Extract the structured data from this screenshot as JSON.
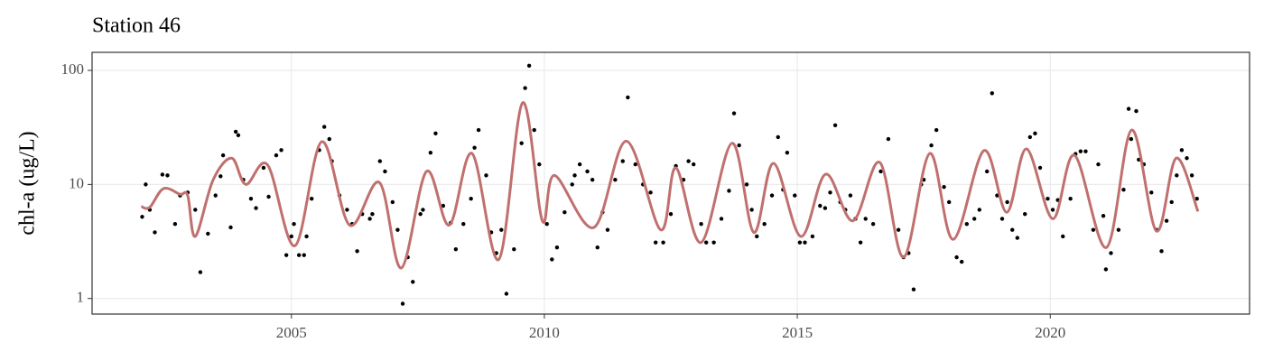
{
  "chart_data": {
    "type": "scatter",
    "title": "Station 46",
    "y_label": "chl-a (ug/L)",
    "log_y": true,
    "grid": true,
    "xlim": [
      2001.06,
      2023.94
    ],
    "ylim": [
      0.73,
      144
    ],
    "xticks": [
      2005,
      2010,
      2015,
      2020
    ],
    "yticks": [
      1,
      10,
      100
    ],
    "points": {
      "color": "#000000",
      "x": [
        2002.05,
        2002.12,
        2002.2,
        2002.3,
        2002.45,
        2002.55,
        2002.7,
        2002.8,
        2002.95,
        2003.1,
        2003.2,
        2003.35,
        2003.5,
        2003.6,
        2003.65,
        2003.8,
        2003.9,
        2003.95,
        2004.05,
        2004.2,
        2004.3,
        2004.45,
        2004.55,
        2004.7,
        2004.8,
        2004.9,
        2005.0,
        2005.05,
        2005.15,
        2005.25,
        2005.3,
        2005.4,
        2005.55,
        2005.65,
        2005.75,
        2005.8,
        2005.95,
        2006.1,
        2006.2,
        2006.3,
        2006.4,
        2006.55,
        2006.6,
        2006.75,
        2006.85,
        2007.0,
        2007.1,
        2007.2,
        2007.3,
        2007.4,
        2007.55,
        2007.6,
        2007.75,
        2007.85,
        2008.0,
        2008.15,
        2008.25,
        2008.4,
        2008.55,
        2008.62,
        2008.7,
        2008.85,
        2008.95,
        2009.05,
        2009.15,
        2009.25,
        2009.4,
        2009.55,
        2009.62,
        2009.7,
        2009.8,
        2009.9,
        2010.05,
        2010.15,
        2010.25,
        2010.4,
        2010.55,
        2010.6,
        2010.7,
        2010.85,
        2010.95,
        2011.05,
        2011.15,
        2011.25,
        2011.4,
        2011.55,
        2011.65,
        2011.8,
        2011.95,
        2012.1,
        2012.2,
        2012.35,
        2012.5,
        2012.6,
        2012.75,
        2012.85,
        2012.95,
        2013.1,
        2013.2,
        2013.35,
        2013.5,
        2013.65,
        2013.75,
        2013.85,
        2014.0,
        2014.1,
        2014.2,
        2014.35,
        2014.5,
        2014.62,
        2014.72,
        2014.8,
        2014.95,
        2015.05,
        2015.15,
        2015.3,
        2015.45,
        2015.55,
        2015.65,
        2015.75,
        2015.85,
        2015.95,
        2016.05,
        2016.15,
        2016.25,
        2016.35,
        2016.5,
        2016.65,
        2016.8,
        2017.0,
        2017.1,
        2017.2,
        2017.3,
        2017.45,
        2017.5,
        2017.65,
        2017.75,
        2017.9,
        2018.0,
        2018.15,
        2018.25,
        2018.35,
        2018.5,
        2018.6,
        2018.75,
        2018.85,
        2018.95,
        2019.05,
        2019.15,
        2019.25,
        2019.35,
        2019.5,
        2019.6,
        2019.7,
        2019.8,
        2019.95,
        2020.05,
        2020.15,
        2020.25,
        2020.4,
        2020.5,
        2020.6,
        2020.7,
        2020.85,
        2020.95,
        2021.05,
        2021.1,
        2021.2,
        2021.35,
        2021.45,
        2021.55,
        2021.6,
        2021.7,
        2021.75,
        2021.85,
        2022.0,
        2022.1,
        2022.2,
        2022.3,
        2022.4,
        2022.5,
        2022.6,
        2022.7,
        2022.8,
        2022.9
      ],
      "values": [
        5.2,
        10,
        6,
        3.8,
        12.2,
        12,
        4.5,
        8,
        8.5,
        6,
        1.7,
        3.7,
        8,
        11.8,
        18,
        4.2,
        29,
        27,
        11,
        7.5,
        6.2,
        14,
        7.8,
        18,
        20,
        2.4,
        3.5,
        4.5,
        2.4,
        2.4,
        3.5,
        7.5,
        20,
        32,
        25,
        16,
        8,
        6,
        4.5,
        2.6,
        5.5,
        5,
        5.5,
        16,
        13,
        7,
        4,
        0.9,
        2.3,
        1.4,
        5.5,
        6,
        19,
        28,
        6.5,
        4.6,
        2.7,
        4.5,
        7.5,
        21,
        30,
        12,
        3.8,
        2.5,
        4,
        1.1,
        2.7,
        23,
        70,
        110,
        30,
        15,
        4.5,
        2.2,
        2.8,
        5.7,
        10,
        12,
        15,
        13,
        11,
        2.8,
        5.7,
        4,
        11,
        16,
        58,
        15,
        10,
        8.5,
        3.1,
        3.1,
        5.5,
        14.5,
        11,
        16,
        15,
        4.5,
        3.1,
        3.1,
        5,
        8.8,
        42,
        22,
        10,
        6,
        3.5,
        4.5,
        8,
        26,
        9,
        19,
        8,
        3.1,
        3.1,
        3.5,
        6.5,
        6.2,
        8.5,
        33,
        7,
        6,
        8,
        5,
        3.1,
        5,
        4.5,
        13,
        25,
        4,
        2.3,
        2.5,
        1.2,
        10,
        11,
        22,
        30,
        9.5,
        7,
        2.3,
        2.1,
        4.5,
        5,
        6,
        13,
        63,
        8,
        5,
        7,
        4,
        3.4,
        5.5,
        26,
        28,
        14,
        7.5,
        6,
        7.3,
        3.5,
        7.5,
        18.5,
        19.5,
        19.5,
        4,
        15,
        5.3,
        1.8,
        2.5,
        4,
        9,
        46,
        25,
        44,
        16.5,
        15,
        8.5,
        4,
        2.6,
        4.8,
        7,
        12,
        20,
        17,
        12,
        7.5
      ]
    },
    "line": {
      "color": "#c0706e",
      "x": [
        2002.03,
        2002.2,
        2002.47,
        2002.8,
        2002.95,
        2003.1,
        2003.45,
        2003.82,
        2004.1,
        2004.53,
        2005.07,
        2005.6,
        2006.15,
        2006.74,
        2007.17,
        2007.67,
        2008.12,
        2008.57,
        2009.1,
        2009.57,
        2009.96,
        2010.2,
        2010.98,
        2011.62,
        2012.3,
        2012.6,
        2013.1,
        2013.71,
        2014.14,
        2014.53,
        2015.07,
        2015.56,
        2016.1,
        2016.63,
        2017.1,
        2017.62,
        2018.08,
        2018.69,
        2019.14,
        2019.53,
        2020.05,
        2020.48,
        2021.11,
        2021.61,
        2022.1,
        2022.49,
        2022.92
      ],
      "values": [
        6.4,
        6.3,
        9.2,
        8.2,
        8.0,
        3.5,
        10.9,
        17,
        10,
        14.8,
        2.9,
        23.7,
        4.4,
        10.4,
        1.85,
        13,
        4.4,
        18.7,
        2.2,
        52,
        4.8,
        12,
        4.2,
        24,
        4,
        14,
        3.1,
        23,
        3.8,
        15.3,
        3.5,
        12.3,
        4.8,
        15.6,
        2.3,
        18.7,
        3.3,
        19.8,
        5.7,
        20.5,
        5,
        18,
        2.8,
        30,
        3.9,
        17,
        5.8
      ]
    }
  }
}
